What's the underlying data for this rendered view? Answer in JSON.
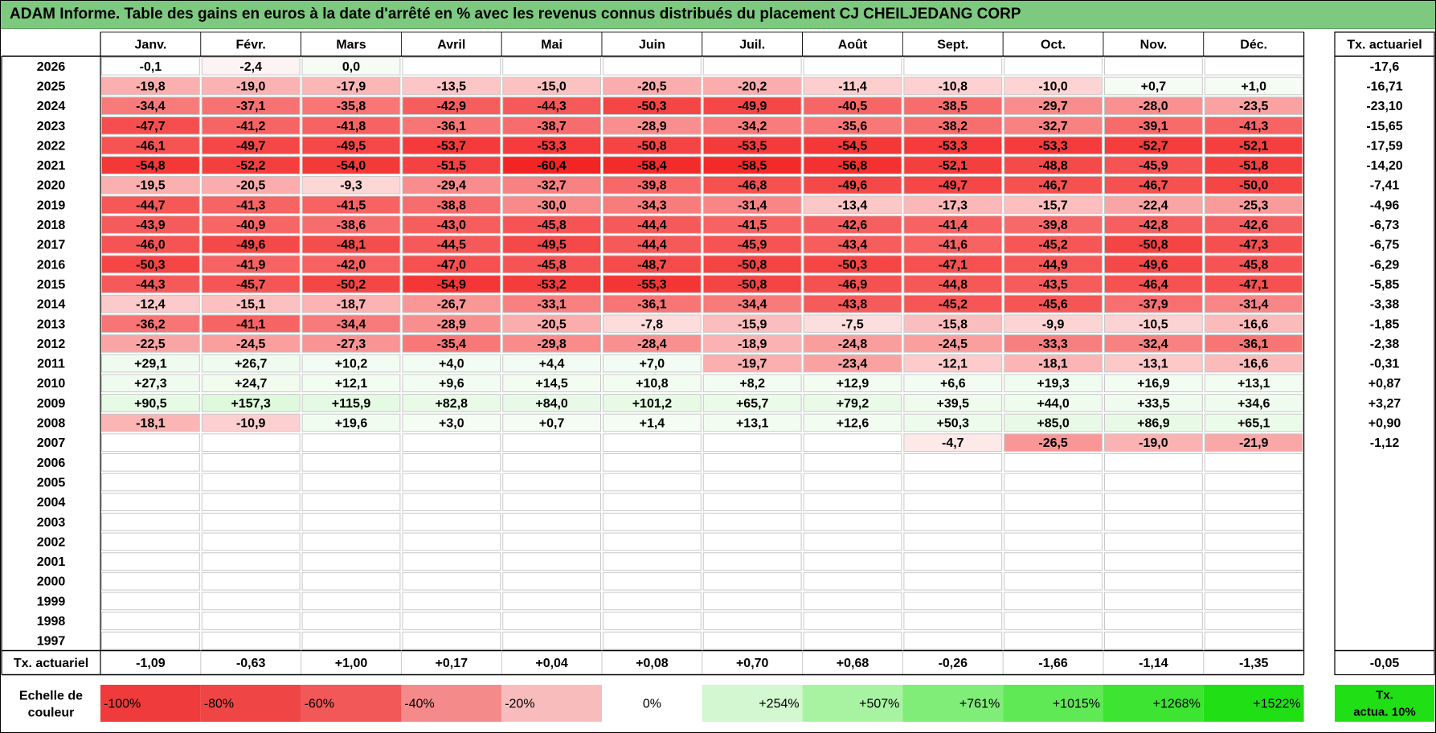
{
  "title": "ADAM Informe. Table des gains en euros à la date d'arrêté en % avec les revenus connus distribués du placement CJ CHEILJEDANG CORP",
  "chart_data": {
    "type": "heatmap",
    "months": [
      "Janv.",
      "Févr.",
      "Mars",
      "Avril",
      "Mai",
      "Juin",
      "Juil.",
      "Août",
      "Sept.",
      "Oct.",
      "Nov.",
      "Déc."
    ],
    "actuarial_header": "Tx. actuariel",
    "rows": [
      {
        "year": "2026",
        "values": [
          "-0,1",
          "-2,4",
          "0,0",
          "",
          "",
          "",
          "",
          "",
          "",
          "",
          "",
          ""
        ],
        "actuarial": "-17,6"
      },
      {
        "year": "2025",
        "values": [
          "-19,8",
          "-19,0",
          "-17,9",
          "-13,5",
          "-15,0",
          "-20,5",
          "-20,2",
          "-11,4",
          "-10,8",
          "-10,0",
          "+0,7",
          "+1,0"
        ],
        "actuarial": "-16,71"
      },
      {
        "year": "2024",
        "values": [
          "-34,4",
          "-37,1",
          "-35,8",
          "-42,9",
          "-44,3",
          "-50,3",
          "-49,9",
          "-40,5",
          "-38,5",
          "-29,7",
          "-28,0",
          "-23,5"
        ],
        "actuarial": "-23,10"
      },
      {
        "year": "2023",
        "values": [
          "-47,7",
          "-41,2",
          "-41,8",
          "-36,1",
          "-38,7",
          "-28,9",
          "-34,2",
          "-35,6",
          "-38,2",
          "-32,7",
          "-39,1",
          "-41,3"
        ],
        "actuarial": "-15,65"
      },
      {
        "year": "2022",
        "values": [
          "-46,1",
          "-49,7",
          "-49,5",
          "-53,7",
          "-53,3",
          "-50,8",
          "-53,5",
          "-54,5",
          "-53,3",
          "-53,3",
          "-52,7",
          "-52,1"
        ],
        "actuarial": "-17,59"
      },
      {
        "year": "2021",
        "values": [
          "-54,8",
          "-52,2",
          "-54,0",
          "-51,5",
          "-60,4",
          "-58,4",
          "-58,5",
          "-56,8",
          "-52,1",
          "-48,8",
          "-45,9",
          "-51,8"
        ],
        "actuarial": "-14,20"
      },
      {
        "year": "2020",
        "values": [
          "-19,5",
          "-20,5",
          "-9,3",
          "-29,4",
          "-32,7",
          "-39,8",
          "-46,8",
          "-49,6",
          "-49,7",
          "-46,7",
          "-46,7",
          "-50,0"
        ],
        "actuarial": "-7,41"
      },
      {
        "year": "2019",
        "values": [
          "-44,7",
          "-41,3",
          "-41,5",
          "-38,8",
          "-30,0",
          "-34,3",
          "-31,4",
          "-13,4",
          "-17,3",
          "-15,7",
          "-22,4",
          "-25,3"
        ],
        "actuarial": "-4,96"
      },
      {
        "year": "2018",
        "values": [
          "-43,9",
          "-40,9",
          "-38,6",
          "-43,0",
          "-45,8",
          "-44,4",
          "-41,5",
          "-42,6",
          "-41,4",
          "-39,8",
          "-42,8",
          "-42,6"
        ],
        "actuarial": "-6,73"
      },
      {
        "year": "2017",
        "values": [
          "-46,0",
          "-49,6",
          "-48,1",
          "-44,5",
          "-49,5",
          "-44,4",
          "-45,9",
          "-43,4",
          "-41,6",
          "-45,2",
          "-50,8",
          "-47,3"
        ],
        "actuarial": "-6,75"
      },
      {
        "year": "2016",
        "values": [
          "-50,3",
          "-41,9",
          "-42,0",
          "-47,0",
          "-45,8",
          "-48,7",
          "-50,8",
          "-50,3",
          "-47,1",
          "-44,9",
          "-49,6",
          "-45,8"
        ],
        "actuarial": "-6,29"
      },
      {
        "year": "2015",
        "values": [
          "-44,3",
          "-45,7",
          "-50,2",
          "-54,9",
          "-53,2",
          "-55,3",
          "-50,8",
          "-46,9",
          "-44,8",
          "-43,5",
          "-46,4",
          "-47,1"
        ],
        "actuarial": "-5,85"
      },
      {
        "year": "2014",
        "values": [
          "-12,4",
          "-15,1",
          "-18,7",
          "-26,7",
          "-33,1",
          "-36,1",
          "-34,4",
          "-43,8",
          "-45,2",
          "-45,6",
          "-37,9",
          "-31,4"
        ],
        "actuarial": "-3,38"
      },
      {
        "year": "2013",
        "values": [
          "-36,2",
          "-41,1",
          "-34,4",
          "-28,9",
          "-20,5",
          "-7,8",
          "-15,9",
          "-7,5",
          "-15,8",
          "-9,9",
          "-10,5",
          "-16,6"
        ],
        "actuarial": "-1,85"
      },
      {
        "year": "2012",
        "values": [
          "-22,5",
          "-24,5",
          "-27,3",
          "-35,4",
          "-29,8",
          "-28,4",
          "-18,9",
          "-24,8",
          "-24,5",
          "-33,3",
          "-32,4",
          "-36,1"
        ],
        "actuarial": "-2,38"
      },
      {
        "year": "2011",
        "values": [
          "+29,1",
          "+26,7",
          "+10,2",
          "+4,0",
          "+4,4",
          "+7,0",
          "-19,7",
          "-23,4",
          "-12,1",
          "-18,1",
          "-13,1",
          "-16,6"
        ],
        "actuarial": "-0,31"
      },
      {
        "year": "2010",
        "values": [
          "+27,3",
          "+24,7",
          "+12,1",
          "+9,6",
          "+14,5",
          "+10,8",
          "+8,2",
          "+12,9",
          "+6,6",
          "+19,3",
          "+16,9",
          "+13,1"
        ],
        "actuarial": "+0,87"
      },
      {
        "year": "2009",
        "values": [
          "+90,5",
          "+157,3",
          "+115,9",
          "+82,8",
          "+84,0",
          "+101,2",
          "+65,7",
          "+79,2",
          "+39,5",
          "+44,0",
          "+33,5",
          "+34,6"
        ],
        "actuarial": "+3,27"
      },
      {
        "year": "2008",
        "values": [
          "-18,1",
          "-10,9",
          "+19,6",
          "+3,0",
          "+0,7",
          "+1,4",
          "+13,1",
          "+12,6",
          "+50,3",
          "+85,0",
          "+86,9",
          "+65,1"
        ],
        "actuarial": "+0,90"
      },
      {
        "year": "2007",
        "values": [
          "",
          "",
          "",
          "",
          "",
          "",
          "",
          "",
          "-4,7",
          "-26,5",
          "-19,0",
          "-21,9"
        ],
        "actuarial": "-1,12"
      },
      {
        "year": "2006",
        "values": [
          "",
          "",
          "",
          "",
          "",
          "",
          "",
          "",
          "",
          "",
          "",
          ""
        ],
        "actuarial": ""
      },
      {
        "year": "2005",
        "values": [
          "",
          "",
          "",
          "",
          "",
          "",
          "",
          "",
          "",
          "",
          "",
          ""
        ],
        "actuarial": ""
      },
      {
        "year": "2004",
        "values": [
          "",
          "",
          "",
          "",
          "",
          "",
          "",
          "",
          "",
          "",
          "",
          ""
        ],
        "actuarial": ""
      },
      {
        "year": "2003",
        "values": [
          "",
          "",
          "",
          "",
          "",
          "",
          "",
          "",
          "",
          "",
          "",
          ""
        ],
        "actuarial": ""
      },
      {
        "year": "2002",
        "values": [
          "",
          "",
          "",
          "",
          "",
          "",
          "",
          "",
          "",
          "",
          "",
          ""
        ],
        "actuarial": ""
      },
      {
        "year": "2001",
        "values": [
          "",
          "",
          "",
          "",
          "",
          "",
          "",
          "",
          "",
          "",
          "",
          ""
        ],
        "actuarial": ""
      },
      {
        "year": "2000",
        "values": [
          "",
          "",
          "",
          "",
          "",
          "",
          "",
          "",
          "",
          "",
          "",
          ""
        ],
        "actuarial": ""
      },
      {
        "year": "1999",
        "values": [
          "",
          "",
          "",
          "",
          "",
          "",
          "",
          "",
          "",
          "",
          "",
          ""
        ],
        "actuarial": ""
      },
      {
        "year": "1998",
        "values": [
          "",
          "",
          "",
          "",
          "",
          "",
          "",
          "",
          "",
          "",
          "",
          ""
        ],
        "actuarial": ""
      },
      {
        "year": "1997",
        "values": [
          "",
          "",
          "",
          "",
          "",
          "",
          "",
          "",
          "",
          "",
          "",
          ""
        ],
        "actuarial": ""
      }
    ],
    "footer": {
      "label": "Tx. actuariel",
      "values": [
        "-1,09",
        "-0,63",
        "+1,00",
        "+0,17",
        "+0,04",
        "+0,08",
        "+0,70",
        "+0,68",
        "-0,26",
        "-1,66",
        "-1,14",
        "-1,35"
      ],
      "total": "-0,05"
    },
    "scale": {
      "label_line1": "Echelle de",
      "label_line2": "couleur",
      "items": [
        {
          "label": "-100%",
          "color": "#ef3b3b"
        },
        {
          "label": "-80%",
          "color": "#f04545"
        },
        {
          "label": "-60%",
          "color": "#f25858"
        },
        {
          "label": "-40%",
          "color": "#f58a8a"
        },
        {
          "label": "-20%",
          "color": "#f9bcbc"
        },
        {
          "label": "0%",
          "color": "#ffffff"
        },
        {
          "label": "+254%",
          "color": "#d3f7d0"
        },
        {
          "label": "+507%",
          "color": "#a8f3a2"
        },
        {
          "label": "+761%",
          "color": "#80ed78"
        },
        {
          "label": "+1015%",
          "color": "#5ee955"
        },
        {
          "label": "+1268%",
          "color": "#3de432"
        },
        {
          "label": "+1522%",
          "color": "#21df15"
        }
      ],
      "actuarial_box_line1": "Tx.",
      "actuarial_box_line2": "actua. 10%",
      "actuarial_box_color": "#21df15"
    }
  }
}
